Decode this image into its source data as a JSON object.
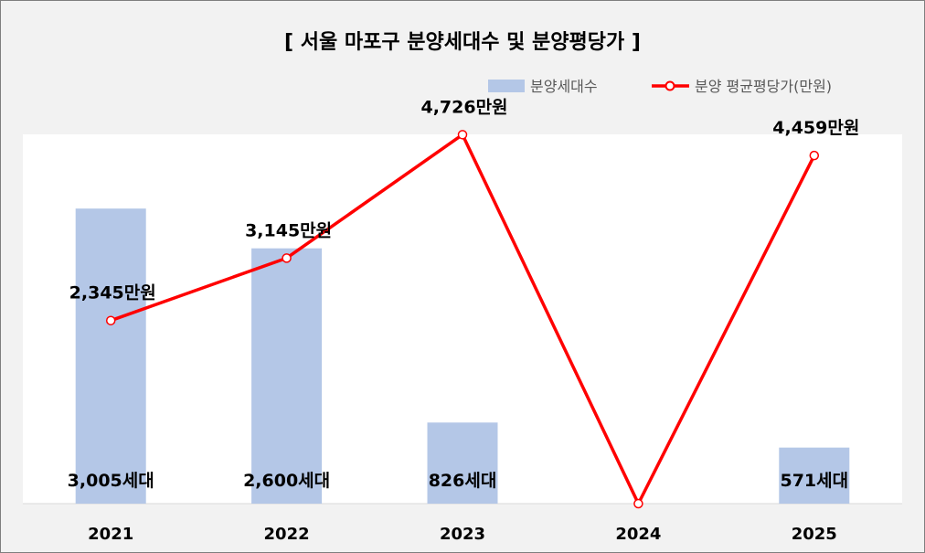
{
  "chart_data": {
    "type": "bar",
    "title": "[ 서울 마포구 분양세대수 및 분양평당가 ]",
    "categories": [
      "2021",
      "2022",
      "2023",
      "2024",
      "2025"
    ],
    "series": [
      {
        "name": "분양세대수",
        "type": "bar",
        "values": [
          3005,
          2600,
          826,
          0,
          571
        ],
        "labels": [
          "3,005세대",
          "2,600세대",
          "826세대",
          "",
          "571세대"
        ],
        "color": "#b4c7e7"
      },
      {
        "name": "분양 평균평당가(만원)",
        "type": "line",
        "values": [
          2345,
          3145,
          4726,
          0,
          4459
        ],
        "labels": [
          "2,345만원",
          "3,145만원",
          "4,726만원",
          "",
          "4,459만원"
        ],
        "color": "#ff0000"
      }
    ],
    "bar_axis_range": [
      0,
      3500
    ],
    "line_axis_range": [
      0,
      4800
    ],
    "grid": false,
    "legend_position": "top-right"
  }
}
